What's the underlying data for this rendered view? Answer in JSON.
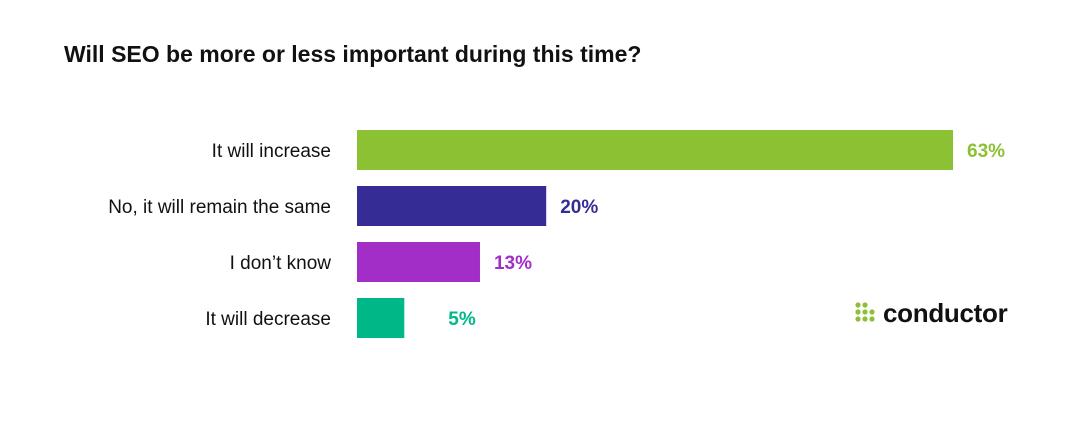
{
  "chart_data": {
    "type": "bar",
    "orientation": "horizontal",
    "title": "Will SEO be more or less important during this time?",
    "categories": [
      "It will increase",
      "No, it will remain the same",
      "I don’t know",
      "It will decrease"
    ],
    "values": [
      63,
      20,
      13,
      5
    ],
    "value_labels": [
      "63%",
      "20%",
      "13%",
      "5%"
    ],
    "colors": [
      "#8CC133",
      "#362C95",
      "#A22DC7",
      "#00B887"
    ],
    "xlim": [
      0,
      63
    ],
    "grid": false,
    "legend": "none"
  },
  "brand": {
    "name": "conductor",
    "color": "#8CC133",
    "icon": "dots-grid-icon"
  }
}
